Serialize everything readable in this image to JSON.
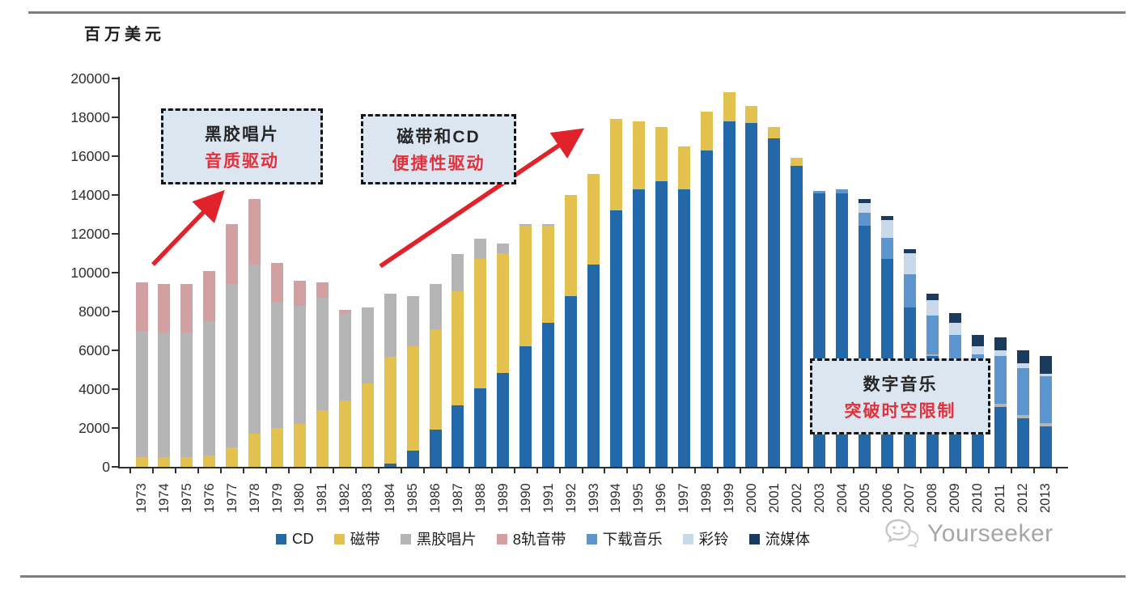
{
  "chart_data": {
    "type": "bar",
    "subtype": "stacked-vertical",
    "unit_label": "百万美元",
    "ylim": [
      0,
      20000
    ],
    "ytick_step": 2000,
    "grid": false,
    "legend_position": "bottom",
    "categories": [
      "1973",
      "1974",
      "1975",
      "1976",
      "1977",
      "1978",
      "1979",
      "1980",
      "1981",
      "1982",
      "1983",
      "1984",
      "1985",
      "1986",
      "1987",
      "1988",
      "1989",
      "1990",
      "1991",
      "1992",
      "1993",
      "1994",
      "1995",
      "1996",
      "1997",
      "1998",
      "1999",
      "2000",
      "2001",
      "2002",
      "2003",
      "2004",
      "2005",
      "2006",
      "2007",
      "2008",
      "2009",
      "2010",
      "2011",
      "2012",
      "2013"
    ],
    "series": [
      {
        "name": "CD",
        "color": "#2368a8",
        "values": [
          0,
          0,
          0,
          0,
          0,
          0,
          0,
          0,
          0,
          0,
          0,
          150,
          850,
          1900,
          3150,
          4050,
          4850,
          6200,
          7400,
          8800,
          10400,
          13200,
          14300,
          14700,
          14300,
          16300,
          17800,
          17700,
          16900,
          15500,
          14100,
          14100,
          12400,
          10700,
          8200,
          5700,
          4400,
          3400,
          3100,
          2500,
          2100
        ]
      },
      {
        "name": "磁带",
        "color": "#e2c14f",
        "values": [
          500,
          500,
          500,
          600,
          1000,
          1700,
          2000,
          2200,
          2900,
          3400,
          4300,
          5500,
          5350,
          5200,
          5900,
          6650,
          6150,
          6200,
          5000,
          5200,
          4700,
          4700,
          3500,
          2800,
          2200,
          2000,
          1500,
          900,
          600,
          400,
          0,
          0,
          0,
          0,
          0,
          0,
          0,
          0,
          0,
          0,
          0
        ]
      },
      {
        "name": "黑胶唱片",
        "color": "#b5b5b5",
        "values": [
          6500,
          6400,
          6400,
          6900,
          8400,
          8700,
          6500,
          6100,
          5800,
          4500,
          3900,
          3250,
          2600,
          2300,
          1900,
          1050,
          500,
          100,
          100,
          0,
          0,
          0,
          0,
          0,
          0,
          0,
          0,
          0,
          0,
          0,
          0,
          0,
          0,
          0,
          0,
          100,
          100,
          100,
          150,
          150,
          150
        ]
      },
      {
        "name": "8轨音带",
        "color": "#d2a0a0",
        "values": [
          2500,
          2500,
          2500,
          2600,
          3100,
          3400,
          2000,
          1300,
          800,
          200,
          0,
          0,
          0,
          0,
          0,
          0,
          0,
          0,
          0,
          0,
          0,
          0,
          0,
          0,
          0,
          0,
          0,
          0,
          0,
          0,
          0,
          0,
          0,
          0,
          0,
          0,
          0,
          0,
          0,
          0,
          0
        ]
      },
      {
        "name": "下载音乐",
        "color": "#5d95ce",
        "values": [
          0,
          0,
          0,
          0,
          0,
          0,
          0,
          0,
          0,
          0,
          0,
          0,
          0,
          0,
          0,
          0,
          0,
          0,
          0,
          0,
          0,
          0,
          0,
          0,
          0,
          0,
          0,
          0,
          0,
          0,
          100,
          200,
          700,
          1100,
          1700,
          2000,
          2300,
          2300,
          2450,
          2450,
          2400
        ]
      },
      {
        "name": "彩铃",
        "color": "#c9d9ec",
        "values": [
          0,
          0,
          0,
          0,
          0,
          0,
          0,
          0,
          0,
          0,
          0,
          0,
          0,
          0,
          0,
          0,
          0,
          0,
          0,
          0,
          0,
          0,
          0,
          0,
          0,
          0,
          0,
          0,
          0,
          0,
          0,
          0,
          500,
          900,
          1100,
          800,
          600,
          400,
          280,
          250,
          150
        ]
      },
      {
        "name": "流媒体",
        "color": "#1a3a5e",
        "values": [
          0,
          0,
          0,
          0,
          0,
          0,
          0,
          0,
          0,
          0,
          0,
          0,
          0,
          0,
          0,
          0,
          0,
          0,
          0,
          0,
          0,
          0,
          0,
          0,
          0,
          0,
          0,
          0,
          0,
          0,
          0,
          0,
          200,
          200,
          200,
          300,
          500,
          600,
          700,
          650,
          900
        ]
      }
    ],
    "annotations": [
      {
        "line1": "黑胶唱片",
        "line2": "音质驱动",
        "line2_color": "#e0313d"
      },
      {
        "line1": "磁带和CD",
        "line2": "便捷性驱动",
        "line2_color": "#e0313d"
      },
      {
        "line1": "数字音乐",
        "line2": "突破时空限制",
        "line2_color": "#e0313d"
      }
    ],
    "arrow_color": "#e0222a"
  },
  "watermark": {
    "text": "Yourseeker"
  }
}
